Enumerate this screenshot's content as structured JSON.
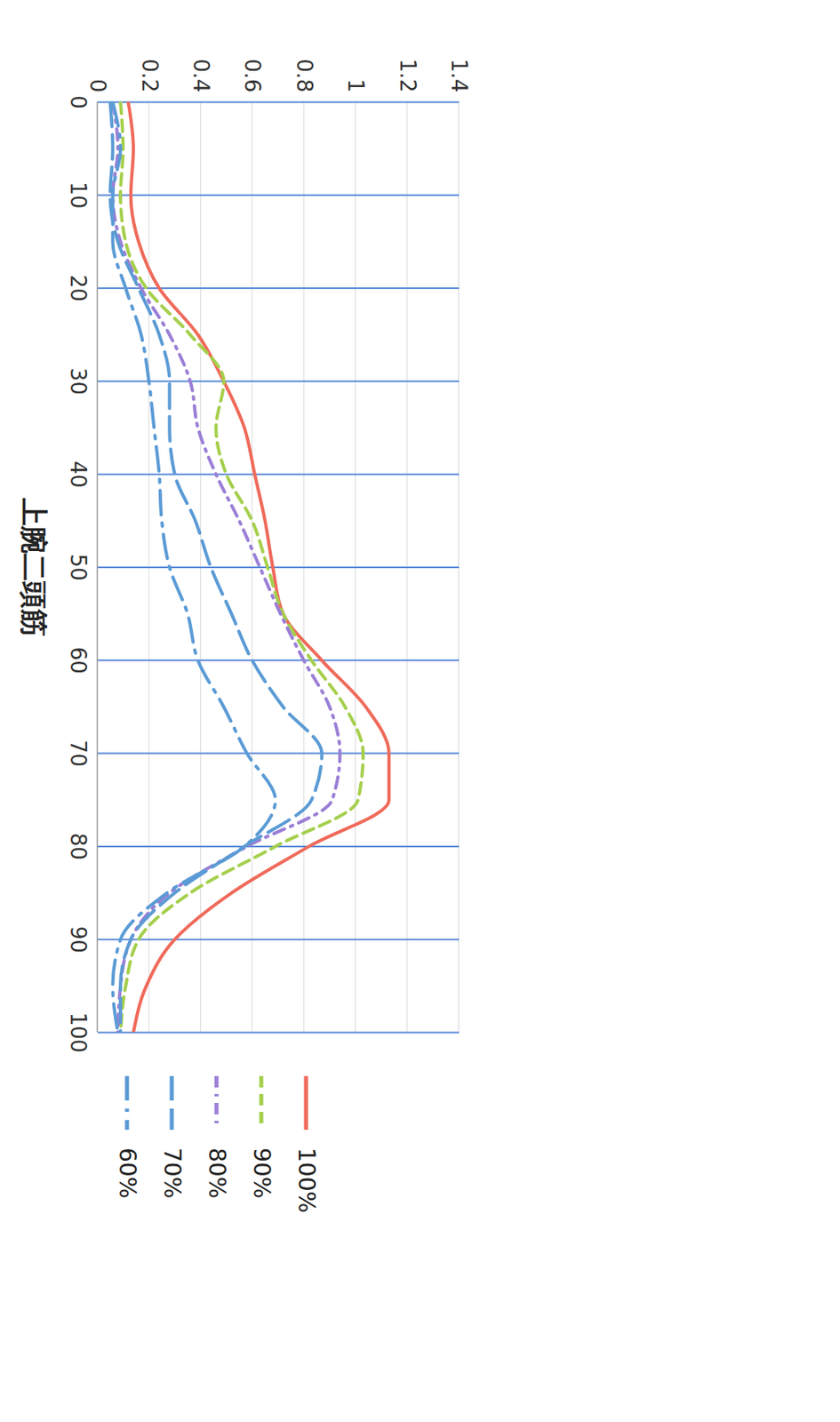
{
  "chart_data": {
    "type": "line",
    "title": "上腕二頭筋",
    "x": [
      0,
      5,
      10,
      15,
      20,
      25,
      30,
      35,
      40,
      45,
      50,
      55,
      60,
      65,
      70,
      75,
      80,
      85,
      90,
      95,
      100
    ],
    "xlim": [
      0,
      100
    ],
    "xticks": [
      0,
      10,
      20,
      30,
      40,
      50,
      60,
      70,
      80,
      90,
      100
    ],
    "ylim": [
      0,
      1.4
    ],
    "yticks": [
      0,
      0.2,
      0.4,
      0.6,
      0.8,
      1,
      1.2,
      1.4
    ],
    "grid": true,
    "legend": "right",
    "series": [
      {
        "name": "100%",
        "color": "#ef6a5a",
        "line_style": "solid",
        "values": [
          0.12,
          0.14,
          0.13,
          0.16,
          0.24,
          0.39,
          0.49,
          0.57,
          0.61,
          0.65,
          0.68,
          0.72,
          0.87,
          1.04,
          1.13,
          1.13,
          0.82,
          0.52,
          0.3,
          0.19,
          0.14
        ]
      },
      {
        "name": "90%",
        "color": "#a5cf4c",
        "line_style": "dashed",
        "values": [
          0.09,
          0.1,
          0.09,
          0.11,
          0.19,
          0.36,
          0.49,
          0.46,
          0.5,
          0.6,
          0.66,
          0.72,
          0.83,
          0.96,
          1.03,
          1.01,
          0.69,
          0.36,
          0.16,
          0.11,
          0.09
        ]
      },
      {
        "name": "80%",
        "color": "#9b7fd6",
        "line_style": "dashdot",
        "values": [
          0.06,
          0.08,
          0.06,
          0.09,
          0.17,
          0.28,
          0.36,
          0.39,
          0.46,
          0.55,
          0.63,
          0.71,
          0.8,
          0.9,
          0.94,
          0.91,
          0.58,
          0.28,
          0.13,
          0.09,
          0.08
        ]
      },
      {
        "name": "70%",
        "color": "#5b9bd5",
        "line_style": "longdash",
        "values": [
          0.05,
          0.06,
          0.05,
          0.08,
          0.16,
          0.24,
          0.28,
          0.28,
          0.3,
          0.38,
          0.44,
          0.52,
          0.6,
          0.72,
          0.87,
          0.83,
          0.57,
          0.3,
          0.13,
          0.09,
          0.09
        ]
      },
      {
        "name": "60%",
        "color": "#5b9bd5",
        "line_style": "longdashdot",
        "values": [
          0.06,
          0.09,
          0.06,
          0.06,
          0.11,
          0.17,
          0.2,
          0.22,
          0.24,
          0.25,
          0.28,
          0.35,
          0.39,
          0.49,
          0.58,
          0.69,
          0.57,
          0.27,
          0.09,
          0.06,
          0.08
        ]
      }
    ]
  }
}
